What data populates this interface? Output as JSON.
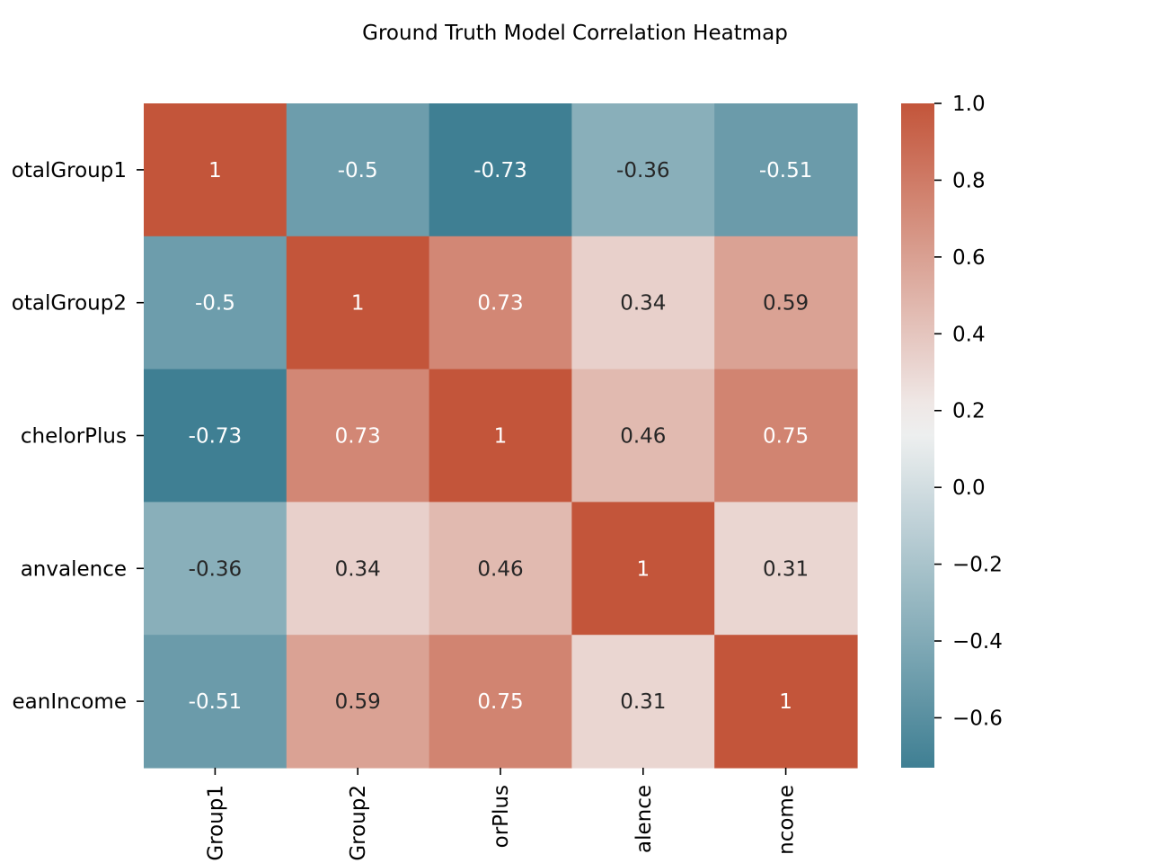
{
  "chart_data": {
    "type": "heatmap",
    "title": "Ground Truth Model Correlation Heatmap",
    "row_labels": [
      "otalGroup1",
      "otalGroup2",
      "chelorPlus",
      "anvalence",
      "eanIncome"
    ],
    "col_labels": [
      "Group1",
      "Group2",
      "orPlus",
      "alence",
      "ncome"
    ],
    "values": [
      [
        1,
        -0.5,
        -0.73,
        -0.36,
        -0.51
      ],
      [
        -0.5,
        1,
        0.73,
        0.34,
        0.59
      ],
      [
        -0.73,
        0.73,
        1,
        0.46,
        0.75
      ],
      [
        -0.36,
        0.34,
        0.46,
        1,
        0.31
      ],
      [
        -0.51,
        0.59,
        0.75,
        0.31,
        1
      ]
    ],
    "annotations": [
      [
        "1",
        "-0.5",
        "-0.73",
        "-0.36",
        "-0.51"
      ],
      [
        "-0.5",
        "1",
        "0.73",
        "0.34",
        "0.59"
      ],
      [
        "-0.73",
        "0.73",
        "1",
        "0.46",
        "0.75"
      ],
      [
        "-0.36",
        "0.34",
        "0.46",
        "1",
        "0.31"
      ],
      [
        "-0.51",
        "0.59",
        "0.75",
        "0.31",
        "1"
      ]
    ],
    "colorbar": {
      "range": [
        -0.73,
        1.0
      ],
      "ticks": [
        -0.6,
        -0.4,
        -0.2,
        0.0,
        0.2,
        0.4,
        0.6,
        0.8,
        1.0
      ],
      "tick_labels": [
        "−0.6",
        "−0.4",
        "−0.2",
        "0.0",
        "0.2",
        "0.4",
        "0.6",
        "0.8",
        "1.0"
      ],
      "center": 0.16
    },
    "colors": {
      "low": "#3f7f93",
      "mid": "#f2f2f2",
      "high": "#c3553a",
      "text_dark": "#262626",
      "text_light": "#ffffff"
    }
  }
}
